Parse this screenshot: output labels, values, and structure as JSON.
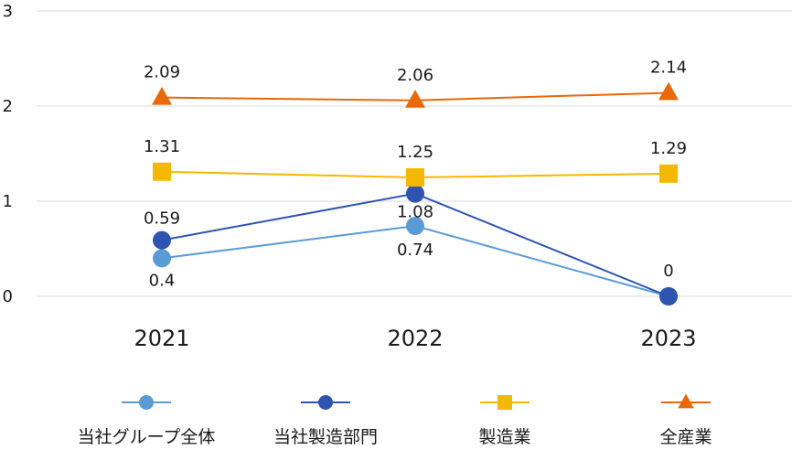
{
  "chart_data": {
    "type": "line",
    "title": "",
    "xlabel": "",
    "ylabel": "",
    "categories": [
      "2021",
      "2022",
      "2023"
    ],
    "ylim": [
      0,
      3
    ],
    "yticks": [
      "0",
      "1",
      "2",
      "3"
    ],
    "grid": "horizontal",
    "legend_position": "bottom",
    "series": [
      {
        "name": "当社グループ全体",
        "values": [
          0.4,
          0.74,
          0
        ],
        "labels": [
          "0.4",
          "0.74",
          null
        ],
        "color": "#5b9bd5",
        "marker": "circle"
      },
      {
        "name": "当社製造部門",
        "values": [
          0.59,
          1.08,
          0
        ],
        "labels": [
          "0.59",
          "1.08",
          "0"
        ],
        "color": "#2f54b0",
        "marker": "circle"
      },
      {
        "name": "製造業",
        "values": [
          1.31,
          1.25,
          1.29
        ],
        "labels": [
          "1.31",
          "1.25",
          "1.29"
        ],
        "color": "#f5b800",
        "marker": "square"
      },
      {
        "name": "全産業",
        "values": [
          2.09,
          2.06,
          2.14
        ],
        "labels": [
          "2.09",
          "2.06",
          "2.14"
        ],
        "color": "#e8690a",
        "marker": "triangle"
      }
    ]
  }
}
